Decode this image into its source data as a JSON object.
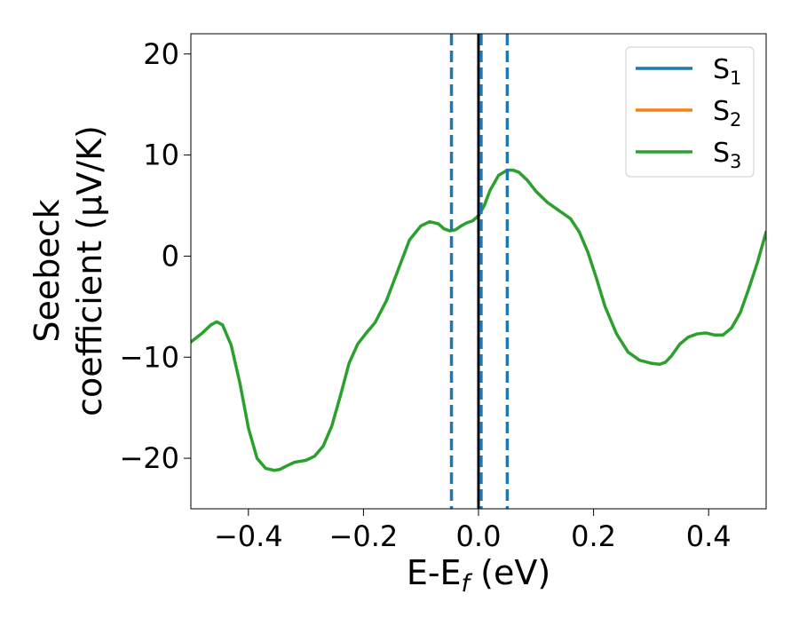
{
  "chart_data": {
    "type": "line",
    "xlabel_main": "E-E",
    "xlabel_sub": "f",
    "xlabel_tail": " (eV)",
    "ylabel_line1": "Seebeck",
    "ylabel_line2": "coefficient  (μV/K)",
    "xlim": [
      -0.5,
      0.5
    ],
    "ylim": [
      -25,
      22
    ],
    "xticks": [
      -0.4,
      -0.2,
      0.0,
      0.2,
      0.4
    ],
    "xtick_labels": [
      "−0.4",
      "−0.2",
      "0.0",
      "0.2",
      "0.4"
    ],
    "yticks": [
      -20,
      -10,
      0,
      10,
      20
    ],
    "ytick_labels": [
      "−20",
      "−10",
      "0",
      "10",
      "20"
    ],
    "legend_position": "top-right",
    "legend": [
      {
        "main": "S",
        "sub": "1",
        "color": "#1f77b4"
      },
      {
        "main": "S",
        "sub": "2",
        "color": "#ff7f0e"
      },
      {
        "main": "S",
        "sub": "3",
        "color": "#2ca02c"
      }
    ],
    "vlines": [
      {
        "x": -0.047,
        "color": "#1f77b4",
        "style": "dashed"
      },
      {
        "x": 0.0,
        "color": "#000000",
        "style": "solid"
      },
      {
        "x": 0.0045,
        "color": "#1f77b4",
        "style": "dashed"
      },
      {
        "x": 0.05,
        "color": "#1f77b4",
        "style": "dashed"
      }
    ],
    "series": [
      {
        "color": "#2ca02c",
        "x": [
          -0.5,
          -0.48,
          -0.465,
          -0.455,
          -0.445,
          -0.43,
          -0.415,
          -0.4,
          -0.385,
          -0.37,
          -0.355,
          -0.345,
          -0.335,
          -0.32,
          -0.3,
          -0.285,
          -0.27,
          -0.255,
          -0.24,
          -0.225,
          -0.21,
          -0.195,
          -0.18,
          -0.16,
          -0.14,
          -0.12,
          -0.1,
          -0.085,
          -0.07,
          -0.06,
          -0.05,
          -0.04,
          -0.03,
          -0.02,
          -0.01,
          0.0,
          0.01,
          0.02,
          0.035,
          0.05,
          0.06,
          0.07,
          0.085,
          0.1,
          0.12,
          0.14,
          0.16,
          0.175,
          0.19,
          0.205,
          0.22,
          0.24,
          0.26,
          0.28,
          0.3,
          0.315,
          0.325,
          0.335,
          0.35,
          0.365,
          0.38,
          0.395,
          0.41,
          0.425,
          0.44,
          0.455,
          0.47,
          0.485,
          0.5
        ],
        "values": [
          -8.5,
          -7.6,
          -6.8,
          -6.5,
          -6.8,
          -8.8,
          -12.5,
          -17.0,
          -20.0,
          -21.0,
          -21.2,
          -21.1,
          -20.8,
          -20.4,
          -20.2,
          -19.8,
          -18.8,
          -16.8,
          -13.8,
          -10.6,
          -8.7,
          -7.6,
          -6.6,
          -4.4,
          -1.4,
          1.6,
          3.0,
          3.4,
          3.2,
          2.7,
          2.5,
          2.6,
          3.0,
          3.3,
          3.5,
          4.0,
          5.0,
          6.5,
          8.0,
          8.5,
          8.5,
          8.3,
          7.5,
          6.4,
          5.3,
          4.5,
          3.7,
          2.4,
          0.4,
          -2.2,
          -5.0,
          -7.7,
          -9.5,
          -10.3,
          -10.6,
          -10.7,
          -10.5,
          -9.9,
          -8.7,
          -8.0,
          -7.7,
          -7.6,
          -7.8,
          -7.8,
          -7.1,
          -5.6,
          -3.2,
          -0.6,
          2.4
        ]
      }
    ]
  }
}
